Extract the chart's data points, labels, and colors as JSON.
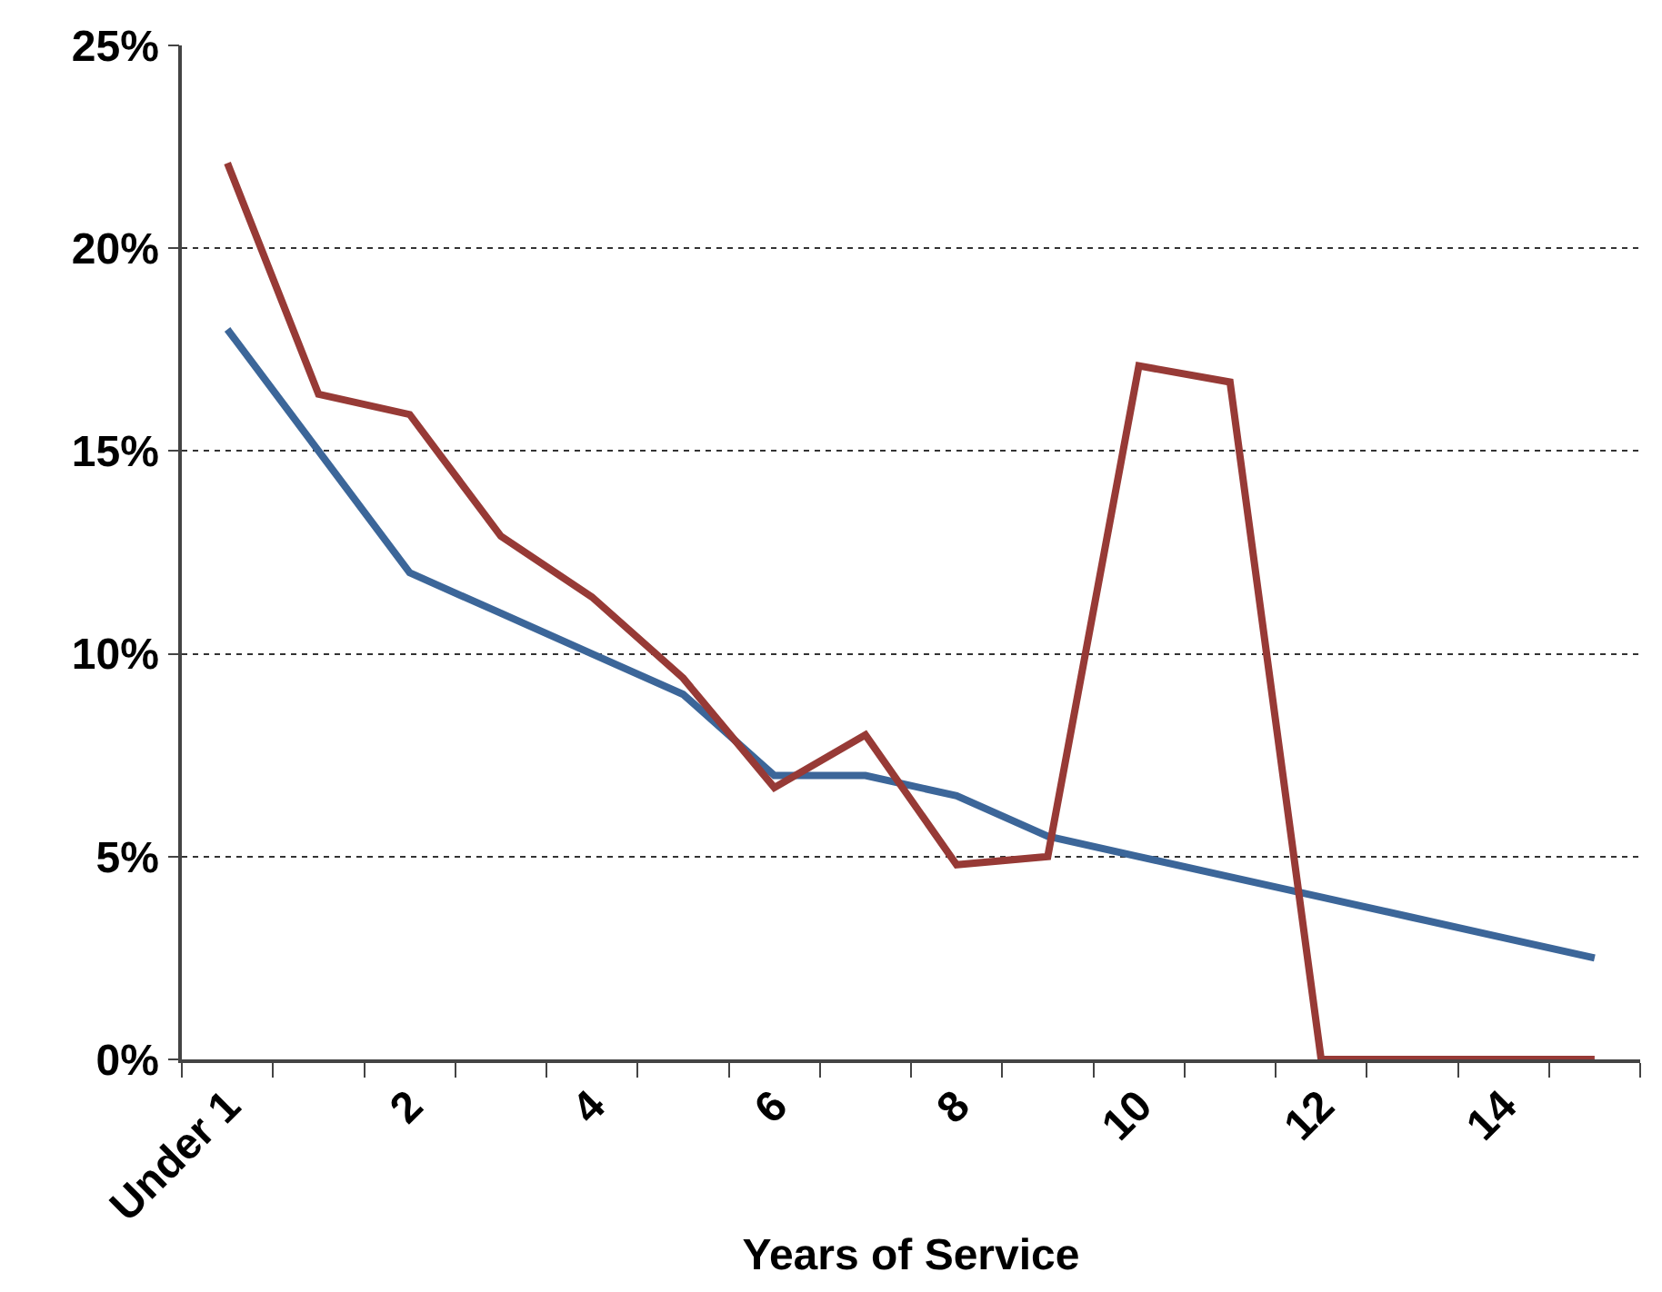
{
  "chart_data": {
    "type": "line",
    "xlabel": "Years of Service",
    "categories": [
      "Under 1",
      null,
      "2",
      null,
      "4",
      null,
      "6",
      null,
      "8",
      null,
      "10",
      null,
      "12",
      null,
      "14",
      null
    ],
    "series": [
      {
        "color": "#3c6699",
        "values": [
          18,
          15,
          12,
          11,
          10,
          9,
          7,
          7,
          6.5,
          5.5,
          5,
          4.5,
          4,
          3.5,
          3,
          2.5
        ]
      },
      {
        "color": "#973a36",
        "values": [
          22.1,
          16.4,
          15.9,
          12.9,
          11.4,
          9.4,
          6.7,
          8.0,
          4.8,
          5.0,
          17.1,
          16.7,
          0,
          0,
          0,
          0
        ]
      }
    ],
    "ylim": [
      0,
      25
    ],
    "yticks": [
      {
        "value": 0,
        "label": "0%"
      },
      {
        "value": 5,
        "label": "5%"
      },
      {
        "value": 10,
        "label": "10%"
      },
      {
        "value": 15,
        "label": "15%"
      },
      {
        "value": 20,
        "label": "20%"
      },
      {
        "value": 25,
        "label": "25%"
      }
    ],
    "grid": "y",
    "marker": "none",
    "line_style": "solid"
  }
}
